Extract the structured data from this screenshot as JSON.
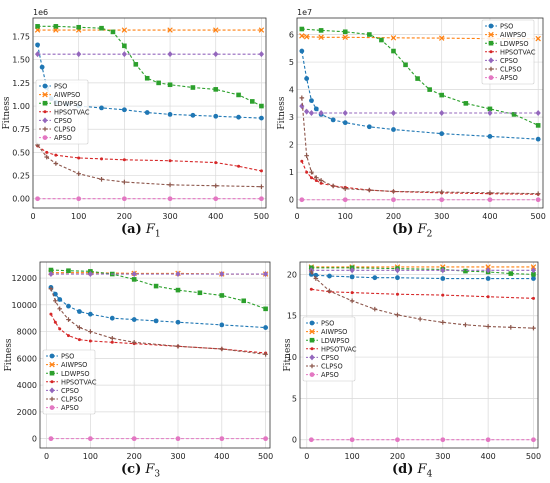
{
  "series_names": [
    "PSO",
    "AIWPSO",
    "LDWPSO",
    "HPSOTVAC",
    "CPSO",
    "CLPSO",
    "APSO"
  ],
  "series_styles": {
    "PSO": {
      "color": "#1f77b4",
      "marker": "circle"
    },
    "AIWPSO": {
      "color": "#ff7f0e",
      "marker": "x"
    },
    "LDWPSO": {
      "color": "#2ca02c",
      "marker": "square"
    },
    "HPSOTVAC": {
      "color": "#d62728",
      "marker": "dot"
    },
    "CPSO": {
      "color": "#9467bd",
      "marker": "diamond"
    },
    "CLPSO": {
      "color": "#8c564b",
      "marker": "plus"
    },
    "APSO": {
      "color": "#e377c2",
      "marker": "circle"
    }
  },
  "chart_data": [
    {
      "type": "line",
      "caption_label": "(a)",
      "caption_func": "F",
      "caption_sub": "1",
      "ylabel": "Fitness",
      "offset_text": "1e6",
      "xlim": [
        0,
        510
      ],
      "ylim": [
        -0.1,
        1.95
      ],
      "xticks": [
        "0",
        "100",
        "200",
        "300",
        "400",
        "500"
      ],
      "xtick_values": [
        0,
        100,
        200,
        300,
        400,
        500
      ],
      "yticks": [
        "0.00",
        "0.25",
        "0.50",
        "0.75",
        "1.00",
        "1.25",
        "1.50",
        "1.75"
      ],
      "ytick_values": [
        0,
        0.25,
        0.5,
        0.75,
        1.0,
        1.25,
        1.5,
        1.75
      ],
      "legend_position": "upper-left",
      "series": [
        {
          "name": "PSO",
          "x": [
            10,
            20,
            30,
            40,
            50,
            75,
            100,
            150,
            200,
            250,
            300,
            350,
            400,
            450,
            500
          ],
          "y": [
            1.66,
            1.42,
            1.2,
            1.08,
            1.04,
            1.02,
            1.0,
            0.98,
            0.96,
            0.93,
            0.91,
            0.9,
            0.89,
            0.88,
            0.87
          ]
        },
        {
          "name": "AIWPSO",
          "x": [
            10,
            50,
            100,
            200,
            300,
            400,
            500
          ],
          "y": [
            1.82,
            1.82,
            1.82,
            1.82,
            1.82,
            1.82,
            1.82
          ]
        },
        {
          "name": "LDWPSO",
          "x": [
            10,
            50,
            100,
            150,
            175,
            200,
            225,
            250,
            275,
            300,
            350,
            400,
            450,
            480,
            500
          ],
          "y": [
            1.86,
            1.86,
            1.85,
            1.84,
            1.8,
            1.65,
            1.45,
            1.3,
            1.25,
            1.23,
            1.2,
            1.18,
            1.12,
            1.05,
            1.0
          ]
        },
        {
          "name": "HPSOTVAC",
          "x": [
            10,
            30,
            50,
            100,
            150,
            200,
            300,
            400,
            450,
            500
          ],
          "y": [
            0.57,
            0.5,
            0.47,
            0.44,
            0.43,
            0.42,
            0.41,
            0.39,
            0.35,
            0.3
          ]
        },
        {
          "name": "CPSO",
          "x": [
            10,
            100,
            200,
            300,
            400,
            500
          ],
          "y": [
            1.56,
            1.56,
            1.56,
            1.56,
            1.56,
            1.56
          ]
        },
        {
          "name": "CLPSO",
          "x": [
            10,
            30,
            50,
            100,
            150,
            200,
            300,
            400,
            500
          ],
          "y": [
            0.58,
            0.45,
            0.38,
            0.27,
            0.21,
            0.18,
            0.15,
            0.14,
            0.13
          ]
        },
        {
          "name": "APSO",
          "x": [
            10,
            100,
            200,
            300,
            400,
            500
          ],
          "y": [
            0.0,
            0.0,
            0.0,
            0.0,
            0.0,
            0.0
          ]
        }
      ]
    },
    {
      "type": "line",
      "caption_label": "(b)",
      "caption_func": "F",
      "caption_sub": "2",
      "ylabel": "Fitness",
      "offset_text": "1e7",
      "xlim": [
        0,
        510
      ],
      "ylim": [
        -0.3,
        6.6
      ],
      "xticks": [
        "0",
        "100",
        "200",
        "300",
        "400",
        "500"
      ],
      "xtick_values": [
        0,
        100,
        200,
        300,
        400,
        500
      ],
      "yticks": [
        "0",
        "1",
        "2",
        "3",
        "4",
        "5",
        "6"
      ],
      "ytick_values": [
        0,
        1,
        2,
        3,
        4,
        5,
        6
      ],
      "legend_position": "upper-right",
      "series": [
        {
          "name": "PSO",
          "x": [
            10,
            20,
            30,
            40,
            50,
            75,
            100,
            150,
            200,
            300,
            400,
            500
          ],
          "y": [
            5.4,
            4.4,
            3.6,
            3.3,
            3.1,
            2.9,
            2.8,
            2.65,
            2.55,
            2.4,
            2.3,
            2.2
          ]
        },
        {
          "name": "AIWPSO",
          "x": [
            10,
            20,
            50,
            100,
            200,
            300,
            400,
            500
          ],
          "y": [
            5.95,
            5.92,
            5.9,
            5.9,
            5.88,
            5.87,
            5.85,
            5.85
          ]
        },
        {
          "name": "LDWPSO",
          "x": [
            10,
            50,
            100,
            150,
            175,
            200,
            225,
            250,
            275,
            300,
            350,
            400,
            450,
            500
          ],
          "y": [
            6.2,
            6.15,
            6.1,
            6.0,
            5.8,
            5.4,
            4.9,
            4.4,
            4.0,
            3.8,
            3.5,
            3.3,
            3.1,
            2.7
          ]
        },
        {
          "name": "HPSOTVAC",
          "x": [
            10,
            20,
            30,
            40,
            50,
            75,
            100,
            150,
            200,
            300,
            400,
            500
          ],
          "y": [
            1.4,
            1.0,
            0.8,
            0.7,
            0.6,
            0.5,
            0.45,
            0.35,
            0.3,
            0.25,
            0.22,
            0.2
          ]
        },
        {
          "name": "CPSO",
          "x": [
            10,
            20,
            30,
            50,
            100,
            200,
            300,
            400,
            500
          ],
          "y": [
            3.4,
            3.2,
            3.15,
            3.15,
            3.15,
            3.15,
            3.15,
            3.15,
            3.15
          ]
        },
        {
          "name": "CLPSO",
          "x": [
            10,
            20,
            30,
            40,
            50,
            75,
            100,
            150,
            200,
            300,
            400,
            500
          ],
          "y": [
            3.7,
            1.6,
            1.0,
            0.8,
            0.7,
            0.5,
            0.4,
            0.35,
            0.3,
            0.28,
            0.25,
            0.22
          ]
        },
        {
          "name": "APSO",
          "x": [
            10,
            100,
            200,
            300,
            400,
            500
          ],
          "y": [
            0.0,
            0.0,
            0.0,
            0.0,
            0.0,
            0.0
          ]
        }
      ]
    },
    {
      "type": "line",
      "caption_label": "(c)",
      "caption_func": "F",
      "caption_sub": "3",
      "ylabel": "Fitness",
      "offset_text": "",
      "xlim": [
        -15,
        510
      ],
      "ylim": [
        -700,
        13200
      ],
      "xticks": [
        "0",
        "100",
        "200",
        "300",
        "400",
        "500"
      ],
      "xtick_values": [
        0,
        100,
        200,
        300,
        400,
        500
      ],
      "yticks": [
        "0",
        "2000",
        "4000",
        "6000",
        "8000",
        "10000",
        "12000"
      ],
      "ytick_values": [
        0,
        2000,
        4000,
        6000,
        8000,
        10000,
        12000
      ],
      "legend_position": "lower-left",
      "series": [
        {
          "name": "PSO",
          "x": [
            10,
            20,
            30,
            50,
            75,
            100,
            150,
            200,
            250,
            300,
            400,
            500
          ],
          "y": [
            11300,
            10800,
            10400,
            9900,
            9500,
            9300,
            9000,
            8900,
            8800,
            8700,
            8500,
            8300
          ]
        },
        {
          "name": "AIWPSO",
          "x": [
            10,
            100,
            200,
            300,
            400,
            500
          ],
          "y": [
            12400,
            12400,
            12350,
            12350,
            12300,
            12300
          ]
        },
        {
          "name": "LDWPSO",
          "x": [
            10,
            50,
            100,
            150,
            200,
            250,
            300,
            350,
            400,
            450,
            500
          ],
          "y": [
            12600,
            12550,
            12500,
            12300,
            11900,
            11400,
            11100,
            10900,
            10700,
            10300,
            9700
          ]
        },
        {
          "name": "HPSOTVAC",
          "x": [
            10,
            20,
            30,
            50,
            75,
            100,
            150,
            200,
            300,
            400,
            500
          ],
          "y": [
            9300,
            8700,
            8200,
            7700,
            7400,
            7300,
            7200,
            7100,
            6900,
            6700,
            6400
          ]
        },
        {
          "name": "CPSO",
          "x": [
            10,
            100,
            200,
            300,
            400,
            500
          ],
          "y": [
            12300,
            12300,
            12300,
            12300,
            12300,
            12300
          ]
        },
        {
          "name": "CLPSO",
          "x": [
            10,
            20,
            30,
            50,
            75,
            100,
            150,
            200,
            300,
            400,
            500
          ],
          "y": [
            11200,
            10300,
            9700,
            8900,
            8300,
            8000,
            7500,
            7200,
            6900,
            6700,
            6300
          ]
        },
        {
          "name": "APSO",
          "x": [
            10,
            100,
            200,
            300,
            400,
            500
          ],
          "y": [
            0,
            0,
            0,
            0,
            0,
            0
          ]
        }
      ]
    },
    {
      "type": "line",
      "caption_label": "(d)",
      "caption_func": "F",
      "caption_sub": "4",
      "ylabel": "Fitness",
      "offset_text": "",
      "xlim": [
        -15,
        510
      ],
      "ylim": [
        -1.0,
        21.5
      ],
      "xticks": [
        "0",
        "100",
        "200",
        "300",
        "400",
        "500"
      ],
      "xtick_values": [
        0,
        100,
        200,
        300,
        400,
        500
      ],
      "yticks": [
        "0",
        "5",
        "10",
        "15",
        "20"
      ],
      "ytick_values": [
        0,
        5,
        10,
        15,
        20
      ],
      "legend_position": "center-left",
      "series": [
        {
          "name": "PSO",
          "x": [
            10,
            20,
            50,
            100,
            150,
            200,
            300,
            400,
            500
          ],
          "y": [
            20.0,
            19.9,
            19.8,
            19.7,
            19.6,
            19.6,
            19.5,
            19.5,
            19.5
          ]
        },
        {
          "name": "AIWPSO",
          "x": [
            10,
            100,
            200,
            300,
            400,
            500
          ],
          "y": [
            20.9,
            20.9,
            20.9,
            20.9,
            20.9,
            20.9
          ]
        },
        {
          "name": "LDWPSO",
          "x": [
            10,
            100,
            200,
            300,
            350,
            400,
            450,
            500
          ],
          "y": [
            20.8,
            20.8,
            20.7,
            20.6,
            20.4,
            20.3,
            20.1,
            20.0
          ]
        },
        {
          "name": "HPSOTVAC",
          "x": [
            10,
            50,
            100,
            200,
            300,
            400,
            500
          ],
          "y": [
            18.2,
            17.9,
            17.8,
            17.6,
            17.5,
            17.3,
            17.1
          ]
        },
        {
          "name": "CPSO",
          "x": [
            10,
            100,
            200,
            300,
            400,
            500
          ],
          "y": [
            20.5,
            20.5,
            20.5,
            20.5,
            20.5,
            20.5
          ]
        },
        {
          "name": "CLPSO",
          "x": [
            10,
            20,
            50,
            100,
            150,
            200,
            250,
            300,
            350,
            400,
            450,
            500
          ],
          "y": [
            20.3,
            19.5,
            18.0,
            16.8,
            15.8,
            15.1,
            14.6,
            14.2,
            13.9,
            13.7,
            13.6,
            13.5
          ]
        },
        {
          "name": "APSO",
          "x": [
            10,
            100,
            200,
            300,
            400,
            500
          ],
          "y": [
            0.0,
            0.0,
            0.0,
            0.0,
            0.0,
            0.0
          ]
        }
      ]
    }
  ]
}
